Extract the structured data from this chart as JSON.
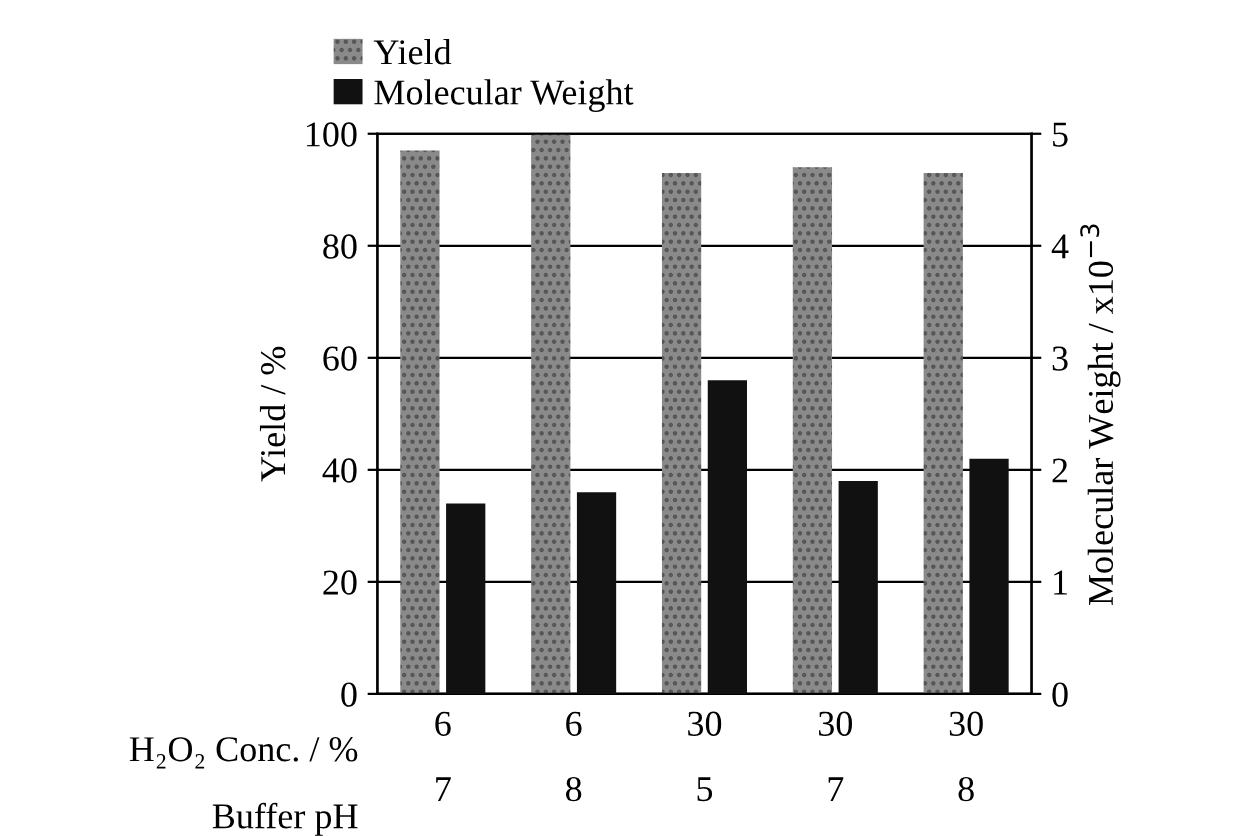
{
  "chart_data": {
    "type": "bar",
    "categories": [
      "6\n7",
      "6\n8",
      "30\n5",
      "30\n7",
      "30\n8"
    ],
    "series": [
      {
        "name": "Yield",
        "color": "#8a8a8a",
        "values": [
          97,
          100,
          93,
          94,
          93
        ]
      },
      {
        "name": "Molecular Weight",
        "color": "#111111",
        "values": [
          1.7,
          1.8,
          2.8,
          1.9,
          2.1
        ],
        "axis": "y2"
      }
    ],
    "ylabel": "Yield / %",
    "y2label": "Molecular Weight / x10$^{−3}$",
    "ylim": [
      0,
      100
    ],
    "yticks": [
      0,
      20,
      40,
      60,
      80,
      100
    ],
    "y2lim": [
      0,
      5
    ],
    "y2ticks": [
      0,
      1,
      2,
      3,
      4,
      5
    ],
    "annotations": [
      "H₂O₂ Conc. / %",
      "Buffer pH"
    ],
    "grid": "y",
    "legend": "top left"
  }
}
